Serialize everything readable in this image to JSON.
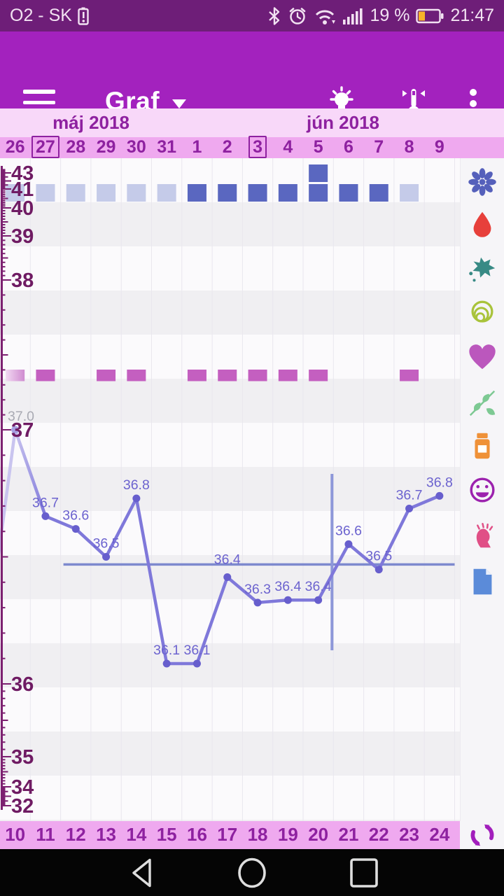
{
  "status_bar": {
    "carrier": "O2 - SK",
    "battery_percent": "19 %",
    "time": "21:47",
    "icons": [
      "battery-alert-icon",
      "bluetooth-icon",
      "alarm-icon",
      "wifi-icon",
      "signal-icon",
      "battery-icon"
    ]
  },
  "app_bar": {
    "title": "Graf",
    "icons": [
      "menu-icon",
      "lightbulb-icon",
      "thermometer-icon",
      "overflow-menu-icon"
    ]
  },
  "calendar": {
    "months": [
      {
        "label": "máj 2018"
      },
      {
        "label": "jún 2018"
      }
    ],
    "boxed_top_dates": [
      "27",
      "3"
    ]
  },
  "chart_data": {
    "type": "line",
    "title": "",
    "xlabel": "",
    "ylabel": "",
    "y_axis_labels": [
      43,
      41,
      40,
      39,
      38,
      37,
      36,
      35,
      34,
      32
    ],
    "y_axis_range": [
      32,
      43.5
    ],
    "grid": "alternating horizontal bands + vertical day lines",
    "legend": "none",
    "columns": [
      {
        "top": "26",
        "bottom": "10",
        "temp": "37.0",
        "plot": 37.0,
        "muted": true,
        "square": "light",
        "bar": "faded"
      },
      {
        "top": "27",
        "bottom": "11",
        "temp": "36.7",
        "plot": 36.66,
        "square": "light",
        "bar": "solid",
        "boxed": true
      },
      {
        "top": "28",
        "bottom": "12",
        "temp": "36.6",
        "plot": 36.61,
        "square": "light",
        "bar": "none"
      },
      {
        "top": "29",
        "bottom": "13",
        "temp": "36.5",
        "plot": 36.5,
        "square": "light",
        "bar": "solid"
      },
      {
        "top": "30",
        "bottom": "14",
        "temp": "36.8",
        "plot": 36.73,
        "square": "light",
        "bar": "solid"
      },
      {
        "top": "31",
        "bottom": "15",
        "temp": "36.1",
        "plot": 36.08,
        "square": "light",
        "bar": "none"
      },
      {
        "top": "1",
        "bottom": "16",
        "temp": "36.1",
        "plot": 36.08,
        "square": "dark",
        "bar": "solid"
      },
      {
        "top": "2",
        "bottom": "17",
        "temp": "36.4",
        "plot": 36.42,
        "square": "dark",
        "bar": "solid"
      },
      {
        "top": "3",
        "bottom": "18",
        "temp": "36.3",
        "plot": 36.32,
        "square": "dark",
        "bar": "solid",
        "boxed": true
      },
      {
        "top": "4",
        "bottom": "19",
        "temp": "36.4",
        "plot": 36.33,
        "square": "dark",
        "bar": "solid"
      },
      {
        "top": "5",
        "bottom": "20",
        "temp": "36.4",
        "plot": 36.33,
        "square": "dark",
        "bar": "solid",
        "extra_square": true
      },
      {
        "top": "6",
        "bottom": "21",
        "temp": "36.6",
        "plot": 36.55,
        "square": "dark",
        "bar": "none"
      },
      {
        "top": "7",
        "bottom": "22",
        "temp": "36.5",
        "plot": 36.45,
        "square": "dark",
        "bar": "none"
      },
      {
        "top": "8",
        "bottom": "23",
        "temp": "36.7",
        "plot": 36.69,
        "square": "light",
        "bar": "solid"
      },
      {
        "top": "9",
        "bottom": "24",
        "temp": "36.8",
        "plot": 36.74,
        "square": "none",
        "bar": "none"
      }
    ],
    "coverline_temp": 36.47,
    "ovulation_line_after_column": 11
  },
  "sidebar_icons": [
    "flower-icon",
    "blood-drop-icon",
    "splash-icon",
    "circles-icon",
    "heart-icon",
    "herbs-icon",
    "medicine-icon",
    "mood-icon",
    "stress-icon",
    "note-icon"
  ],
  "bottom_bar": {
    "sync_icon": "sync-icon"
  },
  "nav_bar": {
    "icons": [
      "back-icon",
      "home-icon",
      "recents-icon"
    ]
  },
  "colors": {
    "status_bar_bg": "#6e1e78",
    "app_bar_bg": "#a322be",
    "month_row_bg": "#f8d8f9",
    "date_row_bg": "#efa9ef",
    "date_text": "#8e21a0",
    "axis": "#7c2070",
    "axis_label": "#6f1b63",
    "line": "#7f78da",
    "line_faded": "#c9c4ef",
    "point": "#675ecd",
    "point_faded": "#a79fe2",
    "temp_label": "#6c63cf",
    "temp_label_muted": "#a9aab3",
    "coverline": "#7d89ce",
    "ovulation_line": "#8d97d9",
    "square_light": "#c5cbe9",
    "square_dark": "#5a67c0",
    "bar_pink": "#c45fc0",
    "gridline": "#e9e7ee",
    "battery_fill": "#f7b329"
  }
}
